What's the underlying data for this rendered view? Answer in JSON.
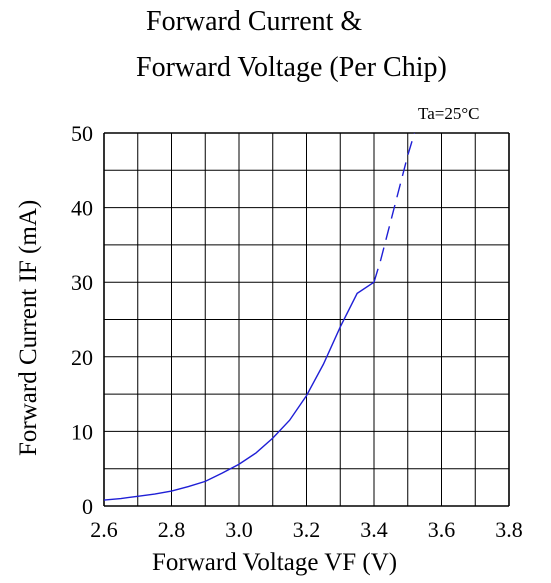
{
  "chart_data": {
    "type": "line",
    "title": [
      "Forward Current &",
      "Forward Voltage (Per Chip)"
    ],
    "annotation": "Ta=25°C",
    "xlabel": "Forward Voltage  VF (V)",
    "ylabel": "Forward Current IF (mA)",
    "xlim": [
      2.6,
      3.8
    ],
    "ylim": [
      0,
      50
    ],
    "x_ticks": [
      "2.6",
      "2.8",
      "3.0",
      "3.2",
      "3.4",
      "3.6",
      "3.8"
    ],
    "y_ticks": [
      "0",
      "10",
      "20",
      "30",
      "40",
      "50"
    ],
    "grid": true,
    "line_color": "#1f1fd6",
    "series": [
      {
        "style": "solid",
        "x": [
          2.6,
          2.65,
          2.7,
          2.75,
          2.8,
          2.85,
          2.9,
          2.95,
          3.0,
          3.05,
          3.1,
          3.15,
          3.2,
          3.25,
          3.3,
          3.35,
          3.4
        ],
        "y": [
          0.8,
          1.0,
          1.3,
          1.6,
          2.0,
          2.6,
          3.3,
          4.4,
          5.6,
          7.1,
          9.1,
          11.5,
          14.8,
          19.0,
          24.0,
          28.5,
          30.0
        ]
      },
      {
        "style": "dashed",
        "x": [
          3.4,
          3.42,
          3.44,
          3.46,
          3.48,
          3.5,
          3.52
        ],
        "y": [
          30.0,
          33.0,
          36.5,
          40.0,
          43.5,
          47.0,
          50.0
        ]
      }
    ]
  }
}
